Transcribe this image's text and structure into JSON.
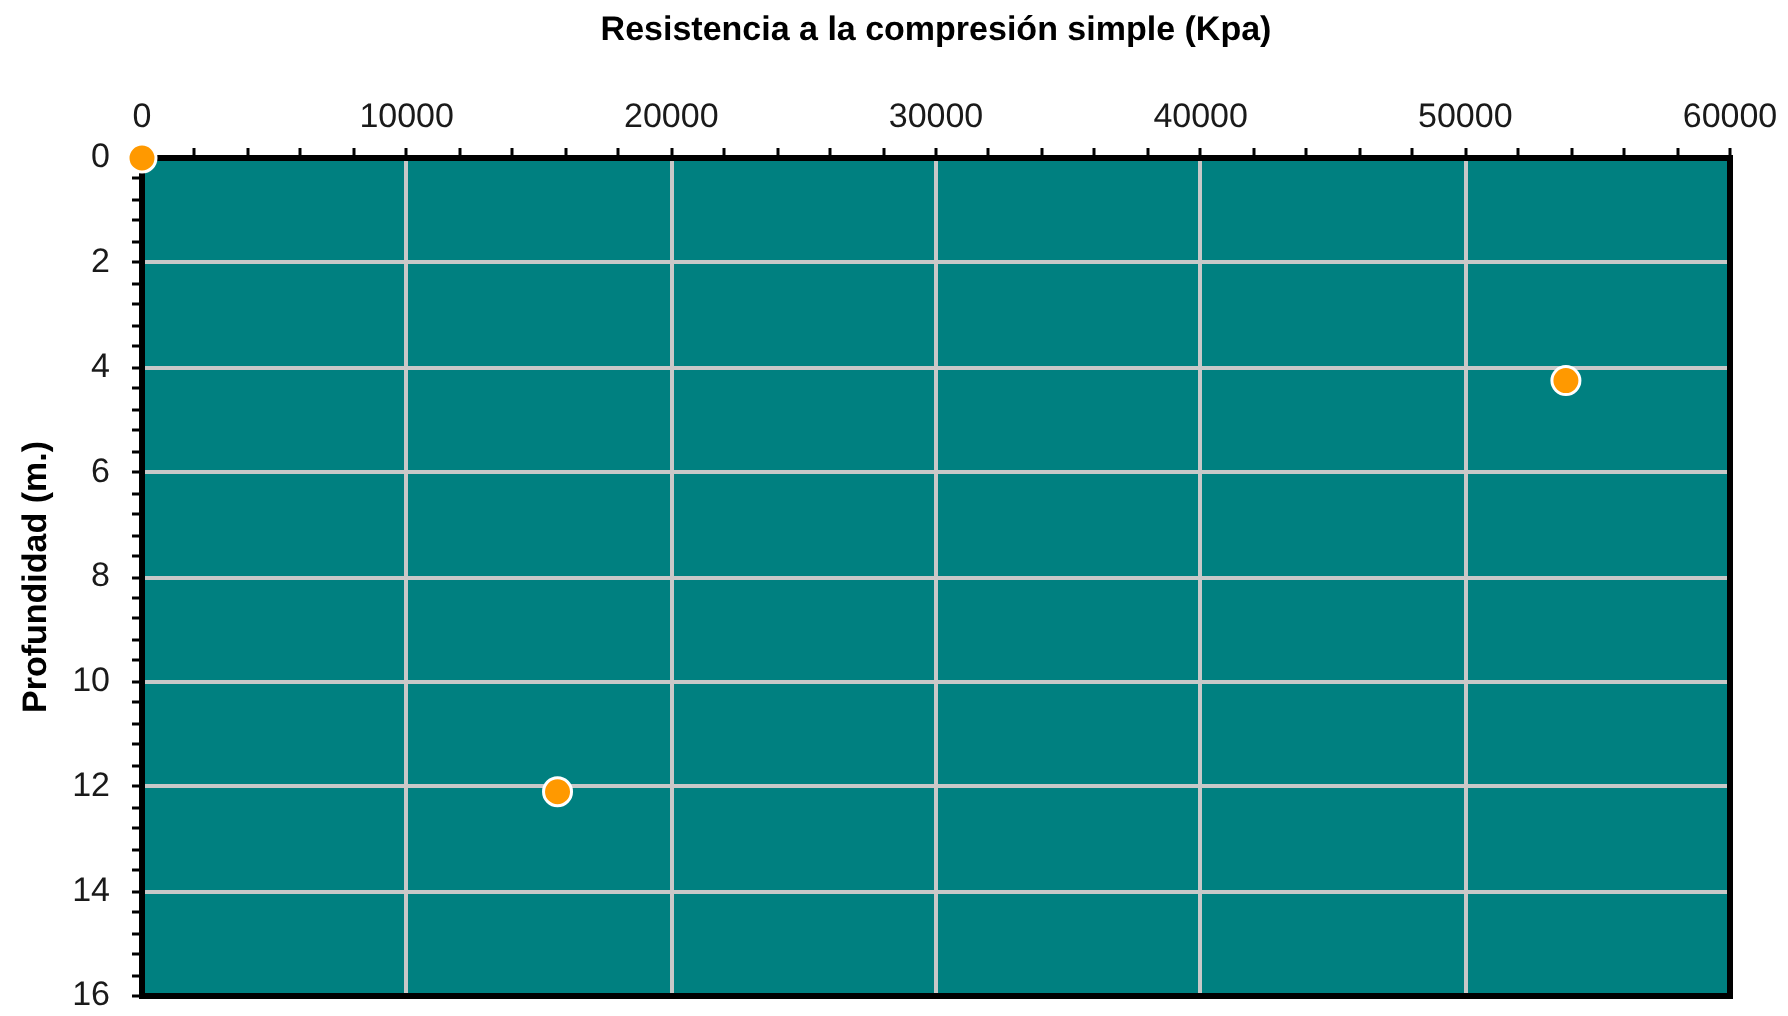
{
  "chart_data": {
    "type": "scatter",
    "xlabel": "Resistencia a la compresión simple (Kpa)",
    "ylabel": "Profundidad (m.)",
    "x": [
      0,
      15700,
      53800
    ],
    "values": [
      0,
      12.1,
      4.25
    ],
    "color": "#ff9900",
    "marker": "circle",
    "xlim": [
      0,
      60000
    ],
    "ylim": [
      16,
      0
    ],
    "xticks": [
      0,
      {
        "value": 2000,
        "label": null
      },
      {
        "value": 4000,
        "label": null
      },
      {
        "value": 6000,
        "label": null
      },
      {
        "value": 8000,
        "label": null
      },
      10000,
      {
        "value": 12000,
        "label": null
      },
      {
        "value": 14000,
        "label": null
      },
      {
        "value": 16000,
        "label": null
      },
      {
        "value": 18000,
        "label": null
      },
      20000,
      {
        "value": 22000,
        "label": null
      },
      {
        "value": 24000,
        "label": null
      },
      {
        "value": 26000,
        "label": null
      },
      {
        "value": 28000,
        "label": null
      },
      30000,
      {
        "value": 32000,
        "label": null
      },
      {
        "value": 34000,
        "label": null
      },
      {
        "value": 36000,
        "label": null
      },
      {
        "value": 38000,
        "label": null
      },
      40000,
      {
        "value": 42000,
        "label": null
      },
      {
        "value": 44000,
        "label": null
      },
      {
        "value": 46000,
        "label": null
      },
      {
        "value": 48000,
        "label": null
      },
      50000,
      {
        "value": 52000,
        "label": null
      },
      {
        "value": 54000,
        "label": null
      },
      {
        "value": 56000,
        "label": null
      },
      {
        "value": 58000,
        "label": null
      },
      60000
    ],
    "yticks": [
      0,
      {
        "value": 0.4,
        "label": null
      },
      {
        "value": 0.8,
        "label": null
      },
      {
        "value": 1.2,
        "label": null
      },
      {
        "value": 1.6,
        "label": null
      },
      2,
      {
        "value": 2.4,
        "label": null
      },
      {
        "value": 2.8,
        "label": null
      },
      {
        "value": 3.2,
        "label": null
      },
      {
        "value": 3.6,
        "label": null
      },
      4,
      {
        "value": 4.4,
        "label": null
      },
      {
        "value": 4.8,
        "label": null
      },
      {
        "value": 5.2,
        "label": null
      },
      {
        "value": 5.6,
        "label": null
      },
      6,
      {
        "value": 6.4,
        "label": null
      },
      {
        "value": 6.8,
        "label": null
      },
      {
        "value": 7.2,
        "label": null
      },
      {
        "value": 7.6,
        "label": null
      },
      8,
      {
        "value": 8.4,
        "label": null
      },
      {
        "value": 8.8,
        "label": null
      },
      {
        "value": 9.2,
        "label": null
      },
      {
        "value": 9.6,
        "label": null
      },
      10,
      {
        "value": 10.4,
        "label": null
      },
      {
        "value": 10.8,
        "label": null
      },
      {
        "value": 11.2,
        "label": null
      },
      {
        "value": 11.6,
        "label": null
      },
      12,
      {
        "value": 12.4,
        "label": null
      },
      {
        "value": 12.8,
        "label": null
      },
      {
        "value": 13.2,
        "label": null
      },
      {
        "value": 13.6,
        "label": null
      },
      14,
      {
        "value": 14.4,
        "label": null
      },
      {
        "value": 14.8,
        "label": null
      },
      {
        "value": 15.2,
        "label": null
      },
      {
        "value": 15.6,
        "label": null
      },
      16
    ],
    "grid": true
  }
}
